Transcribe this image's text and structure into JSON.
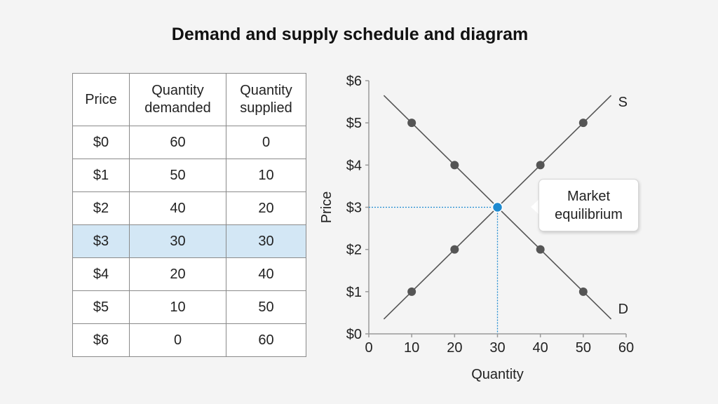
{
  "title": "Demand and supply schedule and diagram",
  "schedule": {
    "headers": [
      "Price",
      "Quantity\ndemanded",
      "Quantity\nsupplied"
    ],
    "rows": [
      [
        "$0",
        "60",
        "0"
      ],
      [
        "$1",
        "50",
        "10"
      ],
      [
        "$2",
        "40",
        "20"
      ],
      [
        "$3",
        "30",
        "30"
      ],
      [
        "$4",
        "20",
        "40"
      ],
      [
        "$5",
        "10",
        "50"
      ],
      [
        "$6",
        "0",
        "60"
      ]
    ],
    "highlight_row": 3
  },
  "callout": {
    "line1": "Market",
    "line2": "equilibrium"
  },
  "chart_data": {
    "type": "line",
    "xlabel": "Quantity",
    "ylabel": "Price",
    "xlim": [
      0,
      60
    ],
    "ylim": [
      0,
      6
    ],
    "x_ticks": [
      "0",
      "10",
      "20",
      "30",
      "40",
      "50",
      "60"
    ],
    "y_ticks": [
      "$0",
      "$1",
      "$2",
      "$3",
      "$4",
      "$5",
      "$6"
    ],
    "grid": false,
    "series": [
      {
        "name": "S",
        "line": [
          [
            3.5,
            0.35
          ],
          [
            56.5,
            5.65
          ]
        ],
        "points": [
          [
            10,
            1
          ],
          [
            20,
            2
          ],
          [
            40,
            4
          ],
          [
            50,
            5
          ]
        ]
      },
      {
        "name": "D",
        "line": [
          [
            3.5,
            5.65
          ],
          [
            56.5,
            0.35
          ]
        ],
        "points": [
          [
            10,
            5
          ],
          [
            20,
            4
          ],
          [
            40,
            2
          ],
          [
            50,
            1
          ]
        ]
      }
    ],
    "equilibrium": {
      "x": 30,
      "y": 3
    },
    "colors": {
      "line": "#555555",
      "point": "#555555",
      "equilibrium": "#1e8ad0",
      "axis": "#9a9a9a"
    }
  }
}
